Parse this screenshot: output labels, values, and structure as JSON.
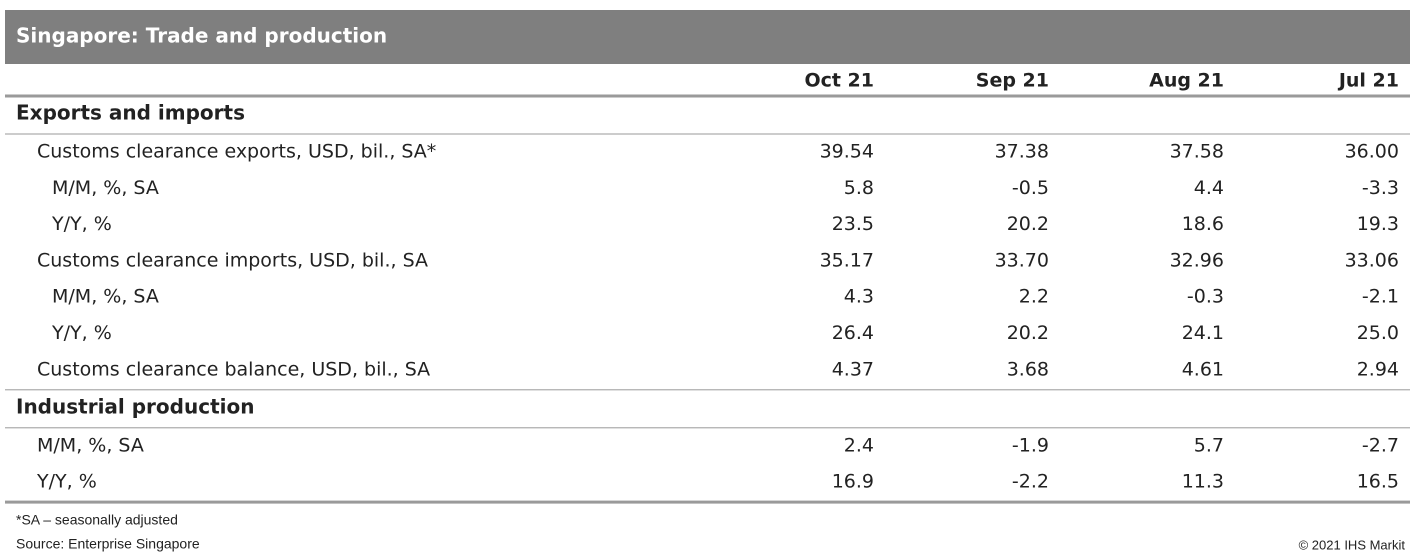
{
  "header": {
    "title": "Singapore: Trade and production"
  },
  "table": {
    "columns": [
      "Oct 21",
      "Sep 21",
      "Aug 21",
      "Jul 21"
    ],
    "sections": [
      {
        "title": "Exports and imports",
        "rows": [
          {
            "label": "Customs clearance exports, USD, bil., SA*",
            "values": [
              "39.54",
              "37.38",
              "37.58",
              "36.00"
            ],
            "subrows": [
              {
                "label": "M/M, %, SA",
                "values": [
                  "5.8",
                  "-0.5",
                  "4.4",
                  "-3.3"
                ]
              },
              {
                "label": "Y/Y, %",
                "values": [
                  "23.5",
                  "20.2",
                  "18.6",
                  "19.3"
                ]
              }
            ]
          },
          {
            "label": "Customs clearance imports, USD, bil., SA",
            "values": [
              "35.17",
              "33.70",
              "32.96",
              "33.06"
            ],
            "subrows": [
              {
                "label": "M/M, %, SA",
                "values": [
                  "4.3",
                  "2.2",
                  "-0.3",
                  "-2.1"
                ]
              },
              {
                "label": "Y/Y, %",
                "values": [
                  "26.4",
                  "20.2",
                  "24.1",
                  "25.0"
                ]
              }
            ]
          },
          {
            "label": "Customs clearance balance, USD, bil., SA",
            "values": [
              "4.37",
              "3.68",
              "4.61",
              "2.94"
            ]
          }
        ]
      },
      {
        "title": "Industrial production",
        "rows": [
          {
            "label": "M/M, %, SA",
            "values": [
              "2.4",
              "-1.9",
              "5.7",
              "-2.7"
            ]
          },
          {
            "label": "Y/Y, %",
            "values": [
              "16.9",
              "-2.2",
              "11.3",
              "16.5"
            ]
          }
        ]
      }
    ]
  },
  "footnote": "*SA – seasonally adjusted",
  "source": "Source: Enterprise Singapore",
  "copyright": "© 2021 IHS Markit"
}
